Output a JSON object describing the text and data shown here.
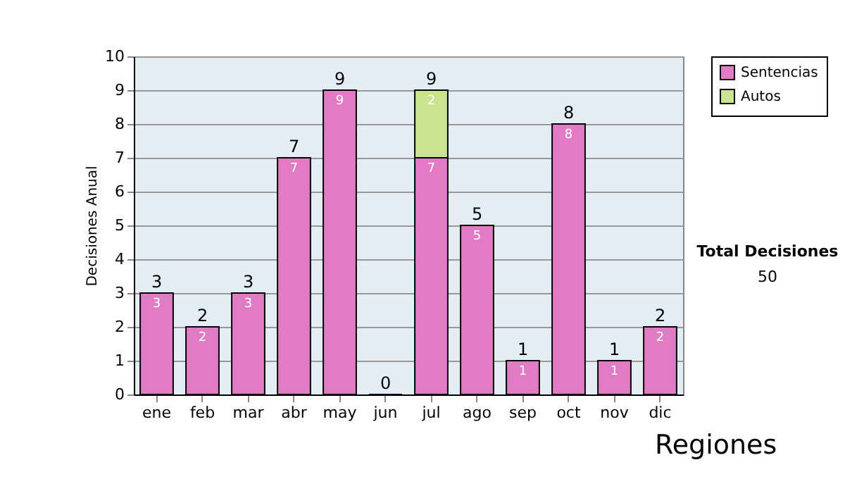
{
  "chart_data": {
    "type": "bar",
    "ylabel": "Decisiones Anual",
    "categories": [
      "ene",
      "feb",
      "mar",
      "abr",
      "may",
      "jun",
      "jul",
      "ago",
      "sep",
      "oct",
      "nov",
      "dic"
    ],
    "series": [
      {
        "name": "Sentencias",
        "color": "#e17bc4",
        "values": [
          3,
          2,
          3,
          7,
          9,
          0,
          7,
          5,
          1,
          8,
          1,
          2
        ],
        "value_labels": [
          "3",
          "2",
          "3",
          "7",
          "9",
          null,
          "7",
          "5",
          "1",
          "8",
          "1",
          "2"
        ]
      },
      {
        "name": "Autos",
        "color": "#c9e490",
        "values": [
          null,
          null,
          null,
          null,
          null,
          null,
          2,
          null,
          null,
          null,
          null,
          null
        ],
        "value_labels": [
          null,
          null,
          null,
          null,
          null,
          null,
          "2",
          null,
          null,
          null,
          null,
          null
        ]
      }
    ],
    "stacked": true,
    "totals": [
      "3",
      "2",
      "3",
      "7",
      "9",
      "0",
      "9",
      "5",
      "1",
      "8",
      "1",
      "2"
    ],
    "ylim": [
      0,
      10
    ],
    "yticks": [
      0,
      1,
      2,
      3,
      4,
      5,
      6,
      7,
      8,
      9,
      10
    ],
    "grid": "y",
    "legend": "right",
    "annotations": [
      "Total Decisiones",
      "50",
      "Regiones"
    ]
  }
}
